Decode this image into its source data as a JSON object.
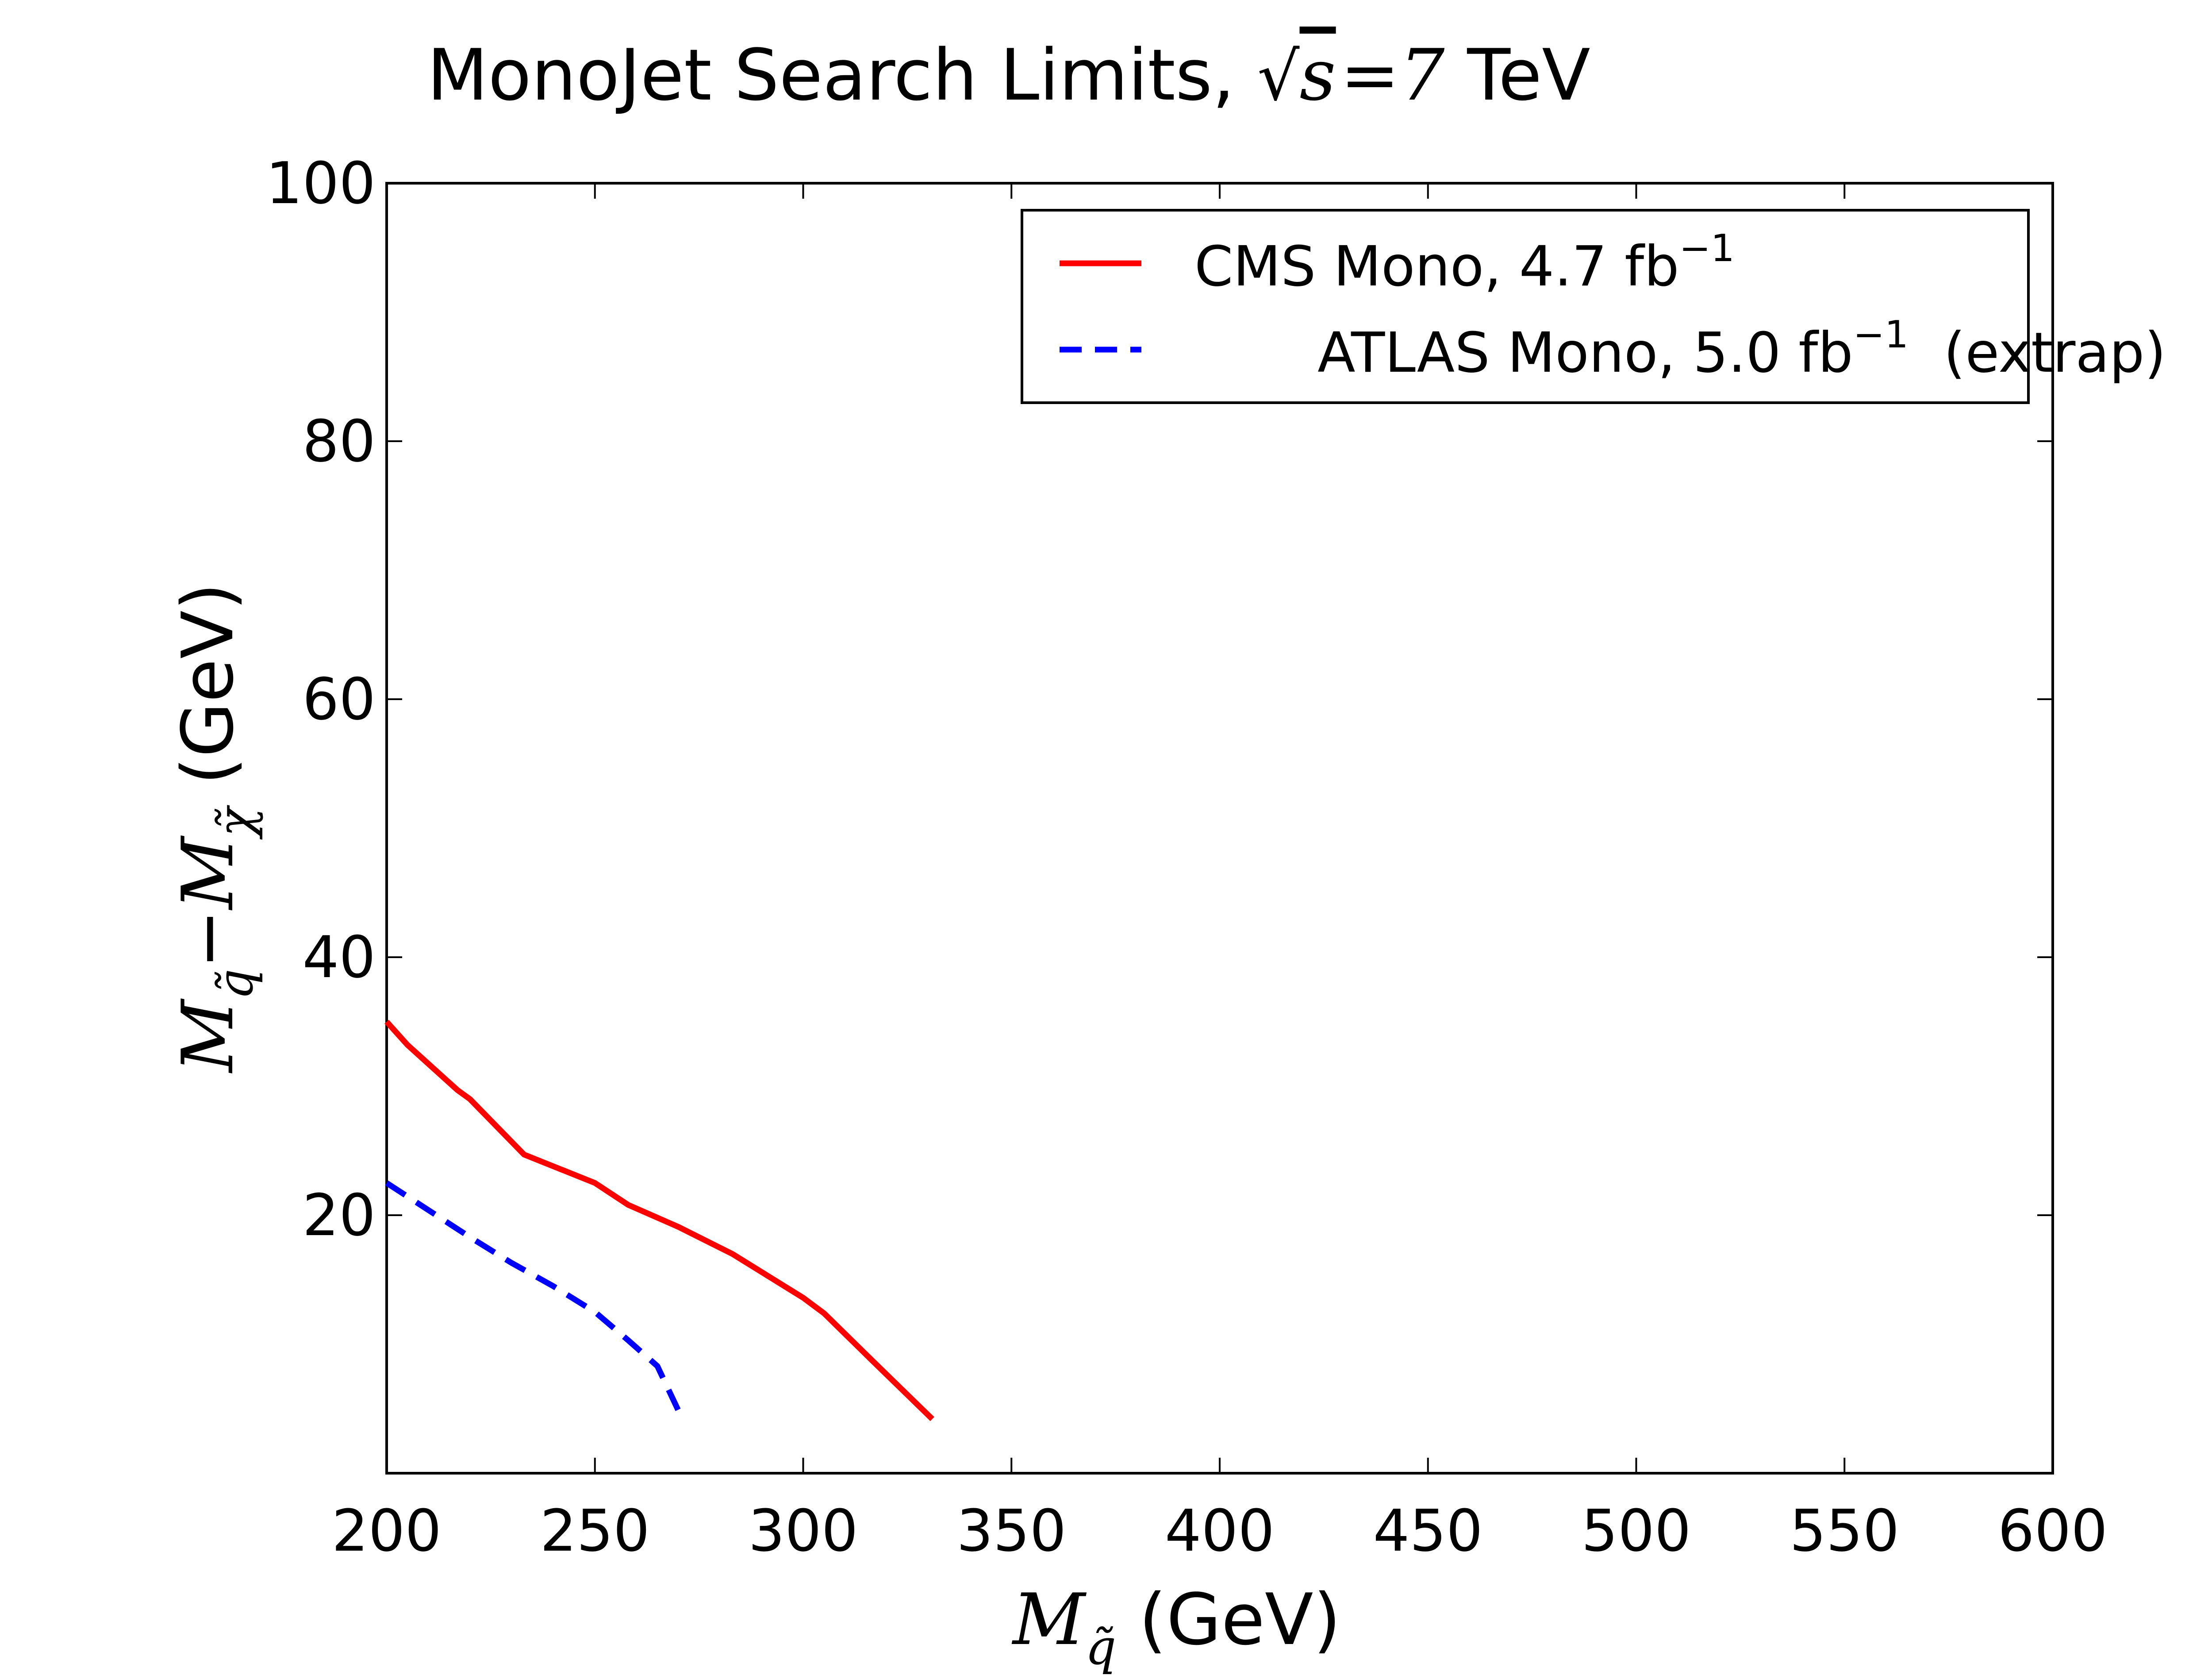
{
  "chart_data": {
    "type": "line",
    "title": {
      "prefix": "MonoJet Search Limits, ",
      "sqrt_var": "s",
      "equals": "=",
      "value": "7",
      "unit": " TeV"
    },
    "xlabel": {
      "symbol": "M",
      "subscript": "q̃",
      "unit": " (GeV)"
    },
    "ylabel": {
      "symbol1": "M",
      "subscript1": "q̃",
      "minus": "−",
      "symbol2": "M",
      "subscript2": "χ̃",
      "unit": " (GeV)"
    },
    "xlim": [
      200,
      600
    ],
    "ylim": [
      0,
      100
    ],
    "xticks": [
      200,
      250,
      300,
      350,
      400,
      450,
      500,
      550,
      600
    ],
    "yticks": [
      20,
      40,
      60,
      80,
      100
    ],
    "grid": false,
    "legend_position": "top-right",
    "series": [
      {
        "name": "CMS Mono, 4.7 fb",
        "name_sup": "−1",
        "name_suffix": "",
        "color": "#ff0000",
        "style": "solid",
        "x": [
          200,
          205,
          217,
          220,
          233,
          250,
          258,
          270,
          283,
          290,
          300,
          305,
          317,
          331
        ],
        "y": [
          35,
          33.2,
          29.7,
          29,
          24.7,
          22.5,
          20.8,
          19.1,
          17,
          15.6,
          13.6,
          12.4,
          8.6,
          4.2
        ]
      },
      {
        "name": "ATLAS Mono, 5.0 fb",
        "name_sup": "−1",
        "name_suffix": "  (extrap)",
        "color": "#0000ff",
        "style": "dashed",
        "x": [
          200,
          210,
          220,
          230,
          240,
          250,
          258,
          265,
          271
        ],
        "y": [
          22.5,
          20.4,
          18.3,
          16.3,
          14.5,
          12.5,
          10.3,
          8.3,
          4.2
        ]
      }
    ]
  }
}
